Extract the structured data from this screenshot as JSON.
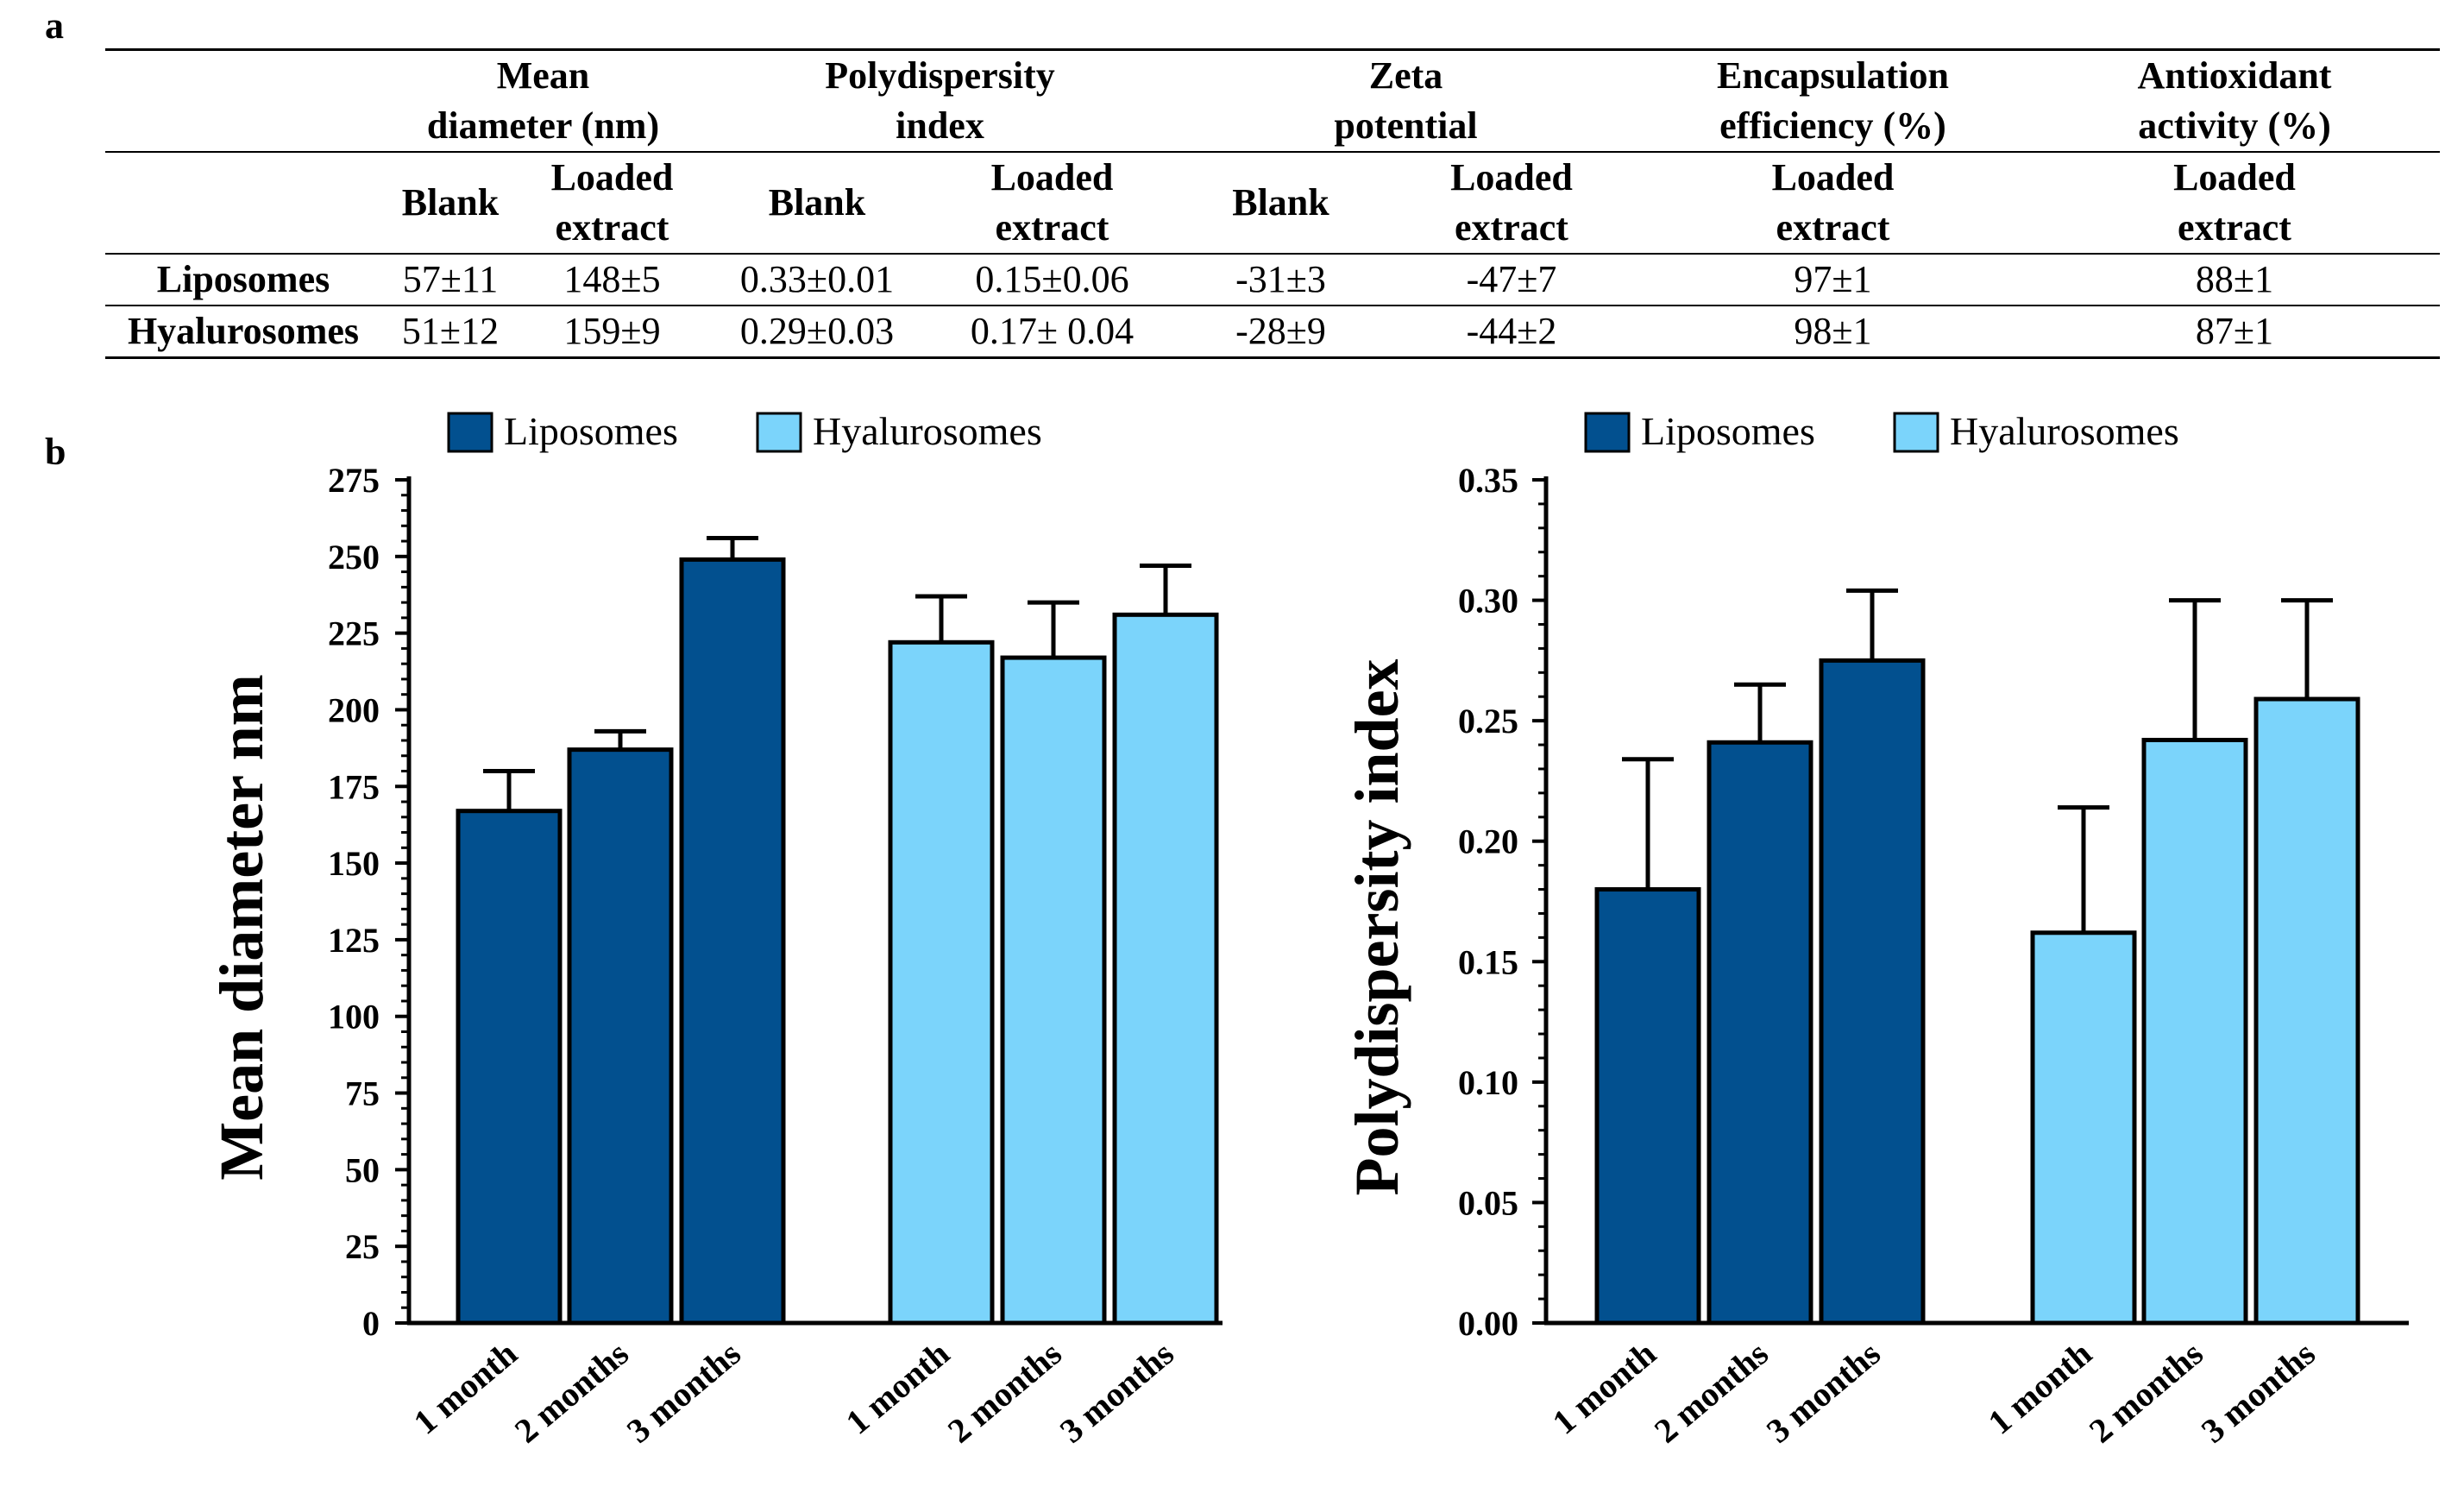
{
  "panel_labels": {
    "a": "a",
    "b": "b"
  },
  "table": {
    "group_headers": [
      [
        "Mean",
        "diameter (nm)"
      ],
      [
        "Polydispersity",
        "index"
      ],
      [
        "Zeta",
        "potential"
      ],
      [
        "Encapsulation",
        "efficiency (%)"
      ],
      [
        "Antioxidant",
        "activity (%)"
      ]
    ],
    "sub_headers": {
      "blank": "Blank",
      "loaded_line1": "Loaded",
      "loaded_line2": "extract"
    },
    "rows": [
      {
        "name": "Liposomes",
        "values": [
          "57±11",
          "148±5",
          "0.33±0.01",
          "0.15±0.06",
          "-31±3",
          "-47±7",
          "97±1",
          "88±1"
        ]
      },
      {
        "name": "Hyalurosomes",
        "values": [
          "51±12",
          "159±9",
          "0.29±0.03",
          "0.17± 0.04",
          "-28±9",
          "-44±2",
          "98±1",
          "87±1"
        ]
      }
    ]
  },
  "colors": {
    "liposomes": "#02508F",
    "hyalurosomes": "#7BD4FB",
    "axis": "#000000"
  },
  "chart_data": [
    {
      "type": "bar",
      "title": "",
      "xlabel": "",
      "ylabel": "Mean diameter nm",
      "ylim": [
        0,
        275
      ],
      "yticks": [
        0,
        25,
        50,
        75,
        100,
        125,
        150,
        175,
        200,
        225,
        250,
        275
      ],
      "ytick_labels": [
        "0",
        "25",
        "50",
        "75",
        "100",
        "125",
        "150",
        "175",
        "200",
        "225",
        "250",
        "275"
      ],
      "categories": [
        "1 month",
        "2 months",
        "3 months"
      ],
      "legend": [
        "Liposomes",
        "Hyalurosomes"
      ],
      "legend_position": "top",
      "series": [
        {
          "name": "Liposomes",
          "values": [
            167,
            187,
            249
          ],
          "errors": [
            13,
            6,
            7
          ]
        },
        {
          "name": "Hyalurosomes",
          "values": [
            222,
            217,
            231
          ],
          "errors": [
            15,
            18,
            16
          ]
        }
      ]
    },
    {
      "type": "bar",
      "title": "",
      "xlabel": "",
      "ylabel": "Polydispersity index",
      "ylim": [
        0,
        0.35
      ],
      "yticks": [
        0,
        0.05,
        0.1,
        0.15,
        0.2,
        0.25,
        0.3,
        0.35
      ],
      "ytick_labels": [
        "0.00",
        "0.05",
        "0.10",
        "0.15",
        "0.20",
        "0.25",
        "0.30",
        "0.35"
      ],
      "categories": [
        "1 month",
        "2 months",
        "3 months"
      ],
      "legend": [
        "Liposomes",
        "Hyalurosomes"
      ],
      "legend_position": "top",
      "series": [
        {
          "name": "Liposomes",
          "values": [
            0.18,
            0.241,
            0.275
          ],
          "errors": [
            0.054,
            0.024,
            0.029
          ]
        },
        {
          "name": "Hyalurosomes",
          "values": [
            0.162,
            0.242,
            0.259
          ],
          "errors": [
            0.052,
            0.058,
            0.041
          ]
        }
      ]
    }
  ]
}
